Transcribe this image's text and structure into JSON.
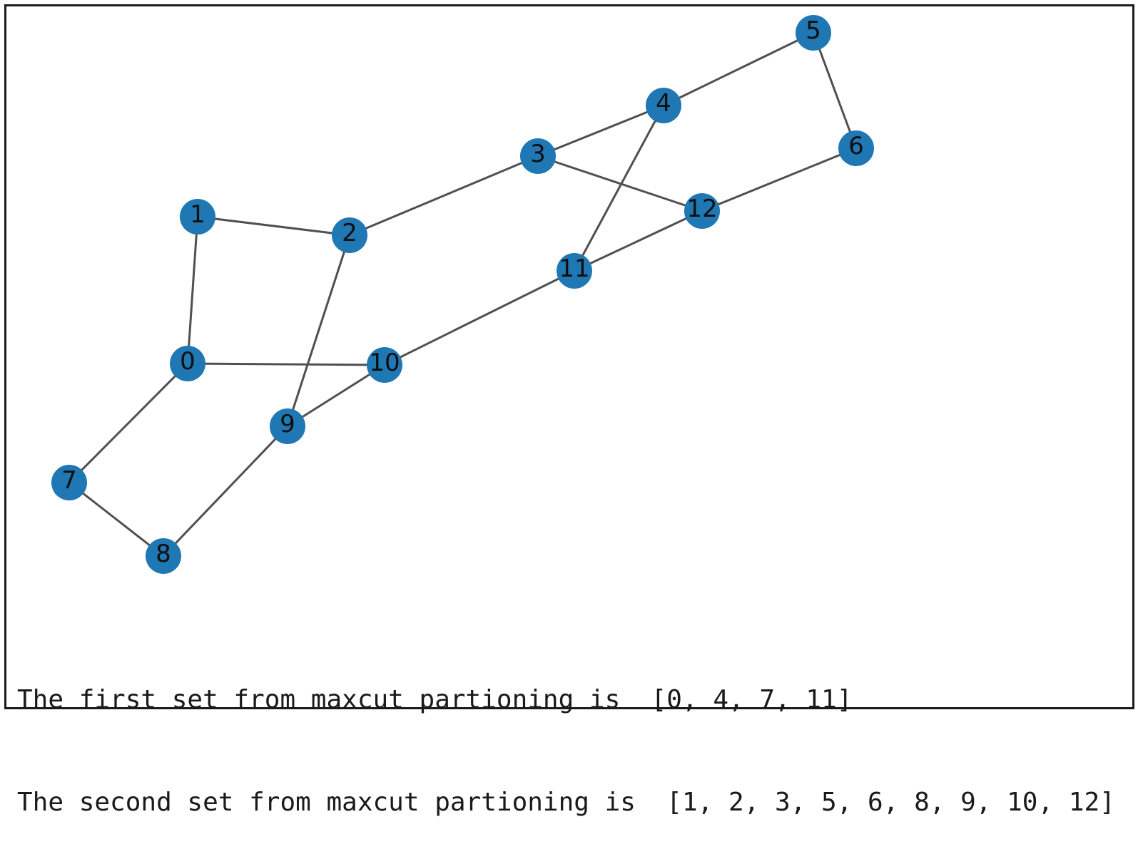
{
  "graph": {
    "nodes": [
      {
        "id": "0",
        "label": "0"
      },
      {
        "id": "1",
        "label": "1"
      },
      {
        "id": "2",
        "label": "2"
      },
      {
        "id": "3",
        "label": "3"
      },
      {
        "id": "4",
        "label": "4"
      },
      {
        "id": "5",
        "label": "5"
      },
      {
        "id": "6",
        "label": "6"
      },
      {
        "id": "7",
        "label": "7"
      },
      {
        "id": "8",
        "label": "8"
      },
      {
        "id": "9",
        "label": "9"
      },
      {
        "id": "10",
        "label": "10"
      },
      {
        "id": "11",
        "label": "11"
      },
      {
        "id": "12",
        "label": "12"
      }
    ],
    "edges": [
      [
        "0",
        "1"
      ],
      [
        "1",
        "2"
      ],
      [
        "2",
        "3"
      ],
      [
        "3",
        "4"
      ],
      [
        "4",
        "5"
      ],
      [
        "5",
        "6"
      ],
      [
        "6",
        "12"
      ],
      [
        "3",
        "12"
      ],
      [
        "12",
        "11"
      ],
      [
        "4",
        "11"
      ],
      [
        "11",
        "10"
      ],
      [
        "0",
        "10"
      ],
      [
        "10",
        "9"
      ],
      [
        "2",
        "9"
      ],
      [
        "9",
        "8"
      ],
      [
        "8",
        "7"
      ],
      [
        "7",
        "0"
      ]
    ],
    "node_color": "#1f77b4",
    "edge_color": "#505050"
  },
  "output": {
    "line1": "The first set from maxcut partioning is  [0, 4, 7, 11]",
    "line2": "The second set from maxcut partioning is  [1, 2, 3, 5, 6, 8, 9, 10, 12]"
  }
}
